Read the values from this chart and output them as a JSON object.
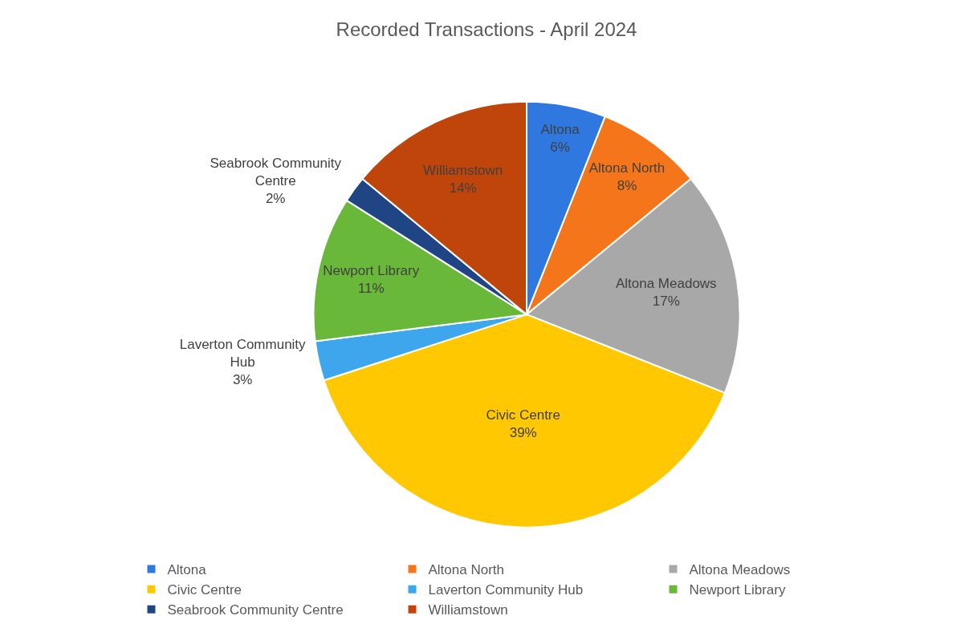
{
  "chart_data": {
    "type": "pie",
    "title": "Recorded Transactions - April 2024",
    "categories": [
      "Altona",
      "Altona North",
      "Altona Meadows",
      "Civic Centre",
      "Laverton Community Hub",
      "Newport Library",
      "Seabrook Community Centre",
      "Williamstown"
    ],
    "values": [
      6,
      8,
      17,
      39,
      3,
      11,
      2,
      14
    ],
    "value_labels": [
      "6%",
      "8%",
      "17%",
      "39%",
      "3%",
      "11%",
      "2%",
      "14%"
    ],
    "colors": [
      "#2f78e0",
      "#f5761a",
      "#a8a8a8",
      "#ffc800",
      "#3ea6ec",
      "#6ab83a",
      "#1f4585",
      "#c0450a"
    ],
    "legend": "bottom"
  }
}
